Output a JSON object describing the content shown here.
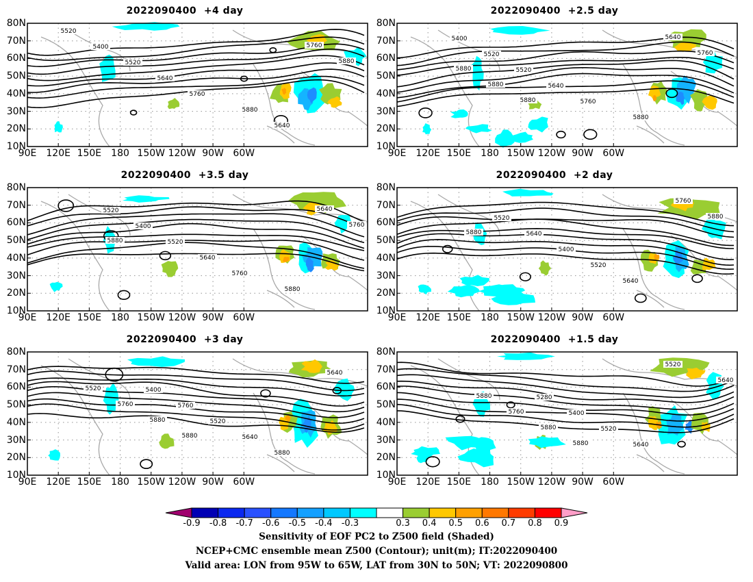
{
  "chart_data": {
    "type": "contour_map_panels",
    "panels": [
      {
        "title_date": "2022090400",
        "title_lead": "+4 day",
        "contour_labels": [
          "5520",
          "5400",
          "5520",
          "5640",
          "5760",
          "5880",
          "5640",
          "5760",
          "5880"
        ]
      },
      {
        "title_date": "2022090400",
        "title_lead": "+2.5 day",
        "contour_labels": [
          "5400",
          "5520",
          "5520",
          "5640",
          "5760",
          "5880",
          "5640",
          "5760",
          "5880",
          "5880",
          "5880"
        ]
      },
      {
        "title_date": "2022090400",
        "title_lead": "+3.5 day",
        "contour_labels": [
          "5520",
          "5400",
          "5520",
          "5640",
          "5760",
          "5880",
          "5640",
          "5760",
          "5880"
        ]
      },
      {
        "title_date": "2022090400",
        "title_lead": "+2 day",
        "contour_labels": [
          "5520",
          "5640",
          "5400",
          "5520",
          "5640",
          "5760",
          "5880",
          "5880"
        ]
      },
      {
        "title_date": "2022090400",
        "title_lead": "+3 day",
        "contour_labels": [
          "5400",
          "5760",
          "5520",
          "5640",
          "5880",
          "5640",
          "5520",
          "5760",
          "5880",
          "5880"
        ]
      },
      {
        "title_date": "2022090400",
        "title_lead": "+1.5 day",
        "contour_labels": [
          "5280",
          "5400",
          "5520",
          "5640",
          "5520",
          "5640",
          "5880",
          "5760",
          "5880",
          "5880"
        ]
      }
    ],
    "y_ticks": [
      "80N",
      "70N",
      "60N",
      "50N",
      "40N",
      "30N",
      "20N",
      "10N"
    ],
    "x_ticks": [
      "90E",
      "120E",
      "150E",
      "180",
      "150W",
      "120W",
      "90W",
      "60W"
    ],
    "colorbar": {
      "ticks": [
        "-0.9",
        "-0.8",
        "-0.7",
        "-0.6",
        "-0.5",
        "-0.4",
        "-0.3",
        "0.3",
        "0.4",
        "0.5",
        "0.6",
        "0.7",
        "0.8",
        "0.9"
      ],
      "colors": [
        "#a0006e",
        "#0000b4",
        "#0a28f0",
        "#2850ff",
        "#1478ff",
        "#14a0ff",
        "#00c8ff",
        "#00ffff",
        "#ffffff",
        "#9acd32",
        "#ffc800",
        "#ffa000",
        "#ff7800",
        "#ff3c00",
        "#ff0000",
        "#ff9ec8"
      ]
    },
    "shading_colors": {
      "blue_dark": "#1a3cff",
      "blue": "#1e8cff",
      "cyan_mid": "#14b4ff",
      "cyan": "#00ffff",
      "green": "#9acd32",
      "yellow": "#ffc800",
      "orange": "#ffa000"
    }
  },
  "caption": {
    "line1": "Sensitivity of EOF PC2 to Z500 field (Shaded)",
    "line2": "NCEP+CMC ensemble mean Z500 (Contour); unit(m); IT:2022090400",
    "line3": "Valid area: LON from 95W to 65W, LAT from 30N to 50N; VT: 2022090800"
  }
}
